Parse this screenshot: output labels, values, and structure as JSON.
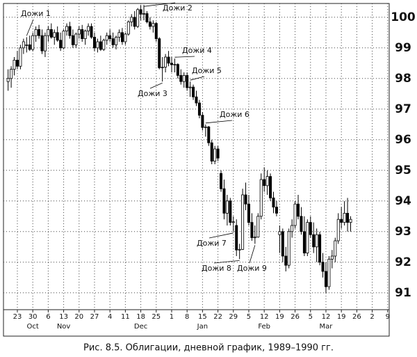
{
  "chart_data": {
    "type": "candlestick",
    "title": "Рис. 8.5. Облигации, дневной график, 1989–1990 гг.",
    "ohlc": [
      [
        97.9,
        98.3,
        97.6,
        98.0
      ],
      [
        98.0,
        98.4,
        97.7,
        98.3
      ],
      [
        98.3,
        98.7,
        98.1,
        98.6
      ],
      [
        98.6,
        98.9,
        98.3,
        98.4
      ],
      [
        98.4,
        99.1,
        98.3,
        99.0
      ],
      [
        99.0,
        99.3,
        98.8,
        99.2
      ],
      [
        99.1,
        99.35,
        98.85,
        99.1
      ],
      [
        99.1,
        99.4,
        98.9,
        98.95
      ],
      [
        98.95,
        99.5,
        98.9,
        99.4
      ],
      [
        99.4,
        99.7,
        99.2,
        99.6
      ],
      [
        99.6,
        99.75,
        99.3,
        99.4
      ],
      [
        99.4,
        99.6,
        98.8,
        98.9
      ],
      [
        98.9,
        99.5,
        98.7,
        99.4
      ],
      [
        99.4,
        99.7,
        99.2,
        99.6
      ],
      [
        99.6,
        99.8,
        99.3,
        99.35
      ],
      [
        99.35,
        99.6,
        99.1,
        99.5
      ],
      [
        99.5,
        99.7,
        99.2,
        99.25
      ],
      [
        99.25,
        99.5,
        98.9,
        99.0
      ],
      [
        99.0,
        99.6,
        98.95,
        99.55
      ],
      [
        99.55,
        99.8,
        99.4,
        99.7
      ],
      [
        99.7,
        99.85,
        99.3,
        99.4
      ],
      [
        99.4,
        99.6,
        99.0,
        99.1
      ],
      [
        99.1,
        99.5,
        99.0,
        99.45
      ],
      [
        99.45,
        99.7,
        99.3,
        99.6
      ],
      [
        99.6,
        99.75,
        99.2,
        99.3
      ],
      [
        99.3,
        99.6,
        99.1,
        99.55
      ],
      [
        99.55,
        99.8,
        99.4,
        99.7
      ],
      [
        99.7,
        99.8,
        99.3,
        99.35
      ],
      [
        99.35,
        99.5,
        98.9,
        99.0
      ],
      [
        99.0,
        99.3,
        98.85,
        99.2
      ],
      [
        99.2,
        99.4,
        98.9,
        98.95
      ],
      [
        98.95,
        99.3,
        98.9,
        99.25
      ],
      [
        99.25,
        99.5,
        99.1,
        99.4
      ],
      [
        99.4,
        99.6,
        99.2,
        99.3
      ],
      [
        99.3,
        99.5,
        99.0,
        99.1
      ],
      [
        99.1,
        99.4,
        98.95,
        99.35
      ],
      [
        99.35,
        99.6,
        99.2,
        99.5
      ],
      [
        99.5,
        99.65,
        99.1,
        99.2
      ],
      [
        99.2,
        99.5,
        99.1,
        99.45
      ],
      [
        99.45,
        99.9,
        99.4,
        99.85
      ],
      [
        99.85,
        100.1,
        99.7,
        100.0
      ],
      [
        100.0,
        100.2,
        99.6,
        99.7
      ],
      [
        99.7,
        100.3,
        99.65,
        100.25
      ],
      [
        100.25,
        100.4,
        99.9,
        100.1
      ],
      [
        100.1,
        100.4,
        99.9,
        100.12
      ],
      [
        100.12,
        100.2,
        99.8,
        99.85
      ],
      [
        99.85,
        100.0,
        99.6,
        99.7
      ],
      [
        99.7,
        99.9,
        99.5,
        99.8
      ],
      [
        99.8,
        99.85,
        99.2,
        99.3
      ],
      [
        99.3,
        99.35,
        98.3,
        98.35
      ],
      [
        98.35,
        98.7,
        97.9,
        98.37
      ],
      [
        98.37,
        98.8,
        98.2,
        98.7
      ],
      [
        98.7,
        98.9,
        98.4,
        98.5
      ],
      [
        98.5,
        98.7,
        98.2,
        98.45
      ],
      [
        98.45,
        98.65,
        98.2,
        98.46
      ],
      [
        98.46,
        98.5,
        98.0,
        98.1
      ],
      [
        98.1,
        98.3,
        97.8,
        97.9
      ],
      [
        97.9,
        98.2,
        97.7,
        98.1
      ],
      [
        98.1,
        98.2,
        97.6,
        97.7
      ],
      [
        97.7,
        97.9,
        97.4,
        97.72
      ],
      [
        97.72,
        97.8,
        97.3,
        97.4
      ],
      [
        97.4,
        97.6,
        97.1,
        97.2
      ],
      [
        97.2,
        97.3,
        96.7,
        96.8
      ],
      [
        96.8,
        96.9,
        96.3,
        96.4
      ],
      [
        96.4,
        96.5,
        96.1,
        96.42
      ],
      [
        96.42,
        96.45,
        95.8,
        95.9
      ],
      [
        95.9,
        96.0,
        95.2,
        95.3
      ],
      [
        95.3,
        95.8,
        95.2,
        95.7
      ],
      [
        95.7,
        95.8,
        95.3,
        95.4
      ],
      [
        94.9,
        95.0,
        94.3,
        94.4
      ],
      [
        94.4,
        94.7,
        93.4,
        93.6
      ],
      [
        93.6,
        94.2,
        93.2,
        94.0
      ],
      [
        94.0,
        94.1,
        93.2,
        93.3
      ],
      [
        93.3,
        93.5,
        93.0,
        93.32
      ],
      [
        93.2,
        93.4,
        92.2,
        92.4
      ],
      [
        92.4,
        92.6,
        92.1,
        92.42
      ],
      [
        92.42,
        94.4,
        92.4,
        94.2
      ],
      [
        94.2,
        94.6,
        93.7,
        93.9
      ],
      [
        93.9,
        94.2,
        93.2,
        93.3
      ],
      [
        93.3,
        93.6,
        92.7,
        92.8
      ],
      [
        92.8,
        93.2,
        92.6,
        92.82
      ],
      [
        92.82,
        93.6,
        92.8,
        93.5
      ],
      [
        93.5,
        94.9,
        93.4,
        94.7
      ],
      [
        94.7,
        95.1,
        94.3,
        94.5
      ],
      [
        94.5,
        95.0,
        94.2,
        94.8
      ],
      [
        94.8,
        94.9,
        94.0,
        94.1
      ],
      [
        94.1,
        94.3,
        93.6,
        93.8
      ],
      [
        93.8,
        94.0,
        93.5,
        93.6
      ],
      [
        92.9,
        93.2,
        92.3,
        93.0
      ],
      [
        93.0,
        93.1,
        92.0,
        92.2
      ],
      [
        92.2,
        92.5,
        91.7,
        91.9
      ],
      [
        91.9,
        93.1,
        91.8,
        93.0
      ],
      [
        93.0,
        93.4,
        92.8,
        93.2
      ],
      [
        93.2,
        94.0,
        93.1,
        93.9
      ],
      [
        93.9,
        94.2,
        93.4,
        93.5
      ],
      [
        93.5,
        93.8,
        92.9,
        93.0
      ],
      [
        93.0,
        93.5,
        92.2,
        92.3
      ],
      [
        92.3,
        93.4,
        92.2,
        93.3
      ],
      [
        93.3,
        93.5,
        92.8,
        92.9
      ],
      [
        92.9,
        93.3,
        92.3,
        92.5
      ],
      [
        92.5,
        93.1,
        92.0,
        92.9
      ],
      [
        92.9,
        93.0,
        91.9,
        92.0
      ],
      [
        92.0,
        92.3,
        91.5,
        91.7
      ],
      [
        91.7,
        92.0,
        91.0,
        91.2
      ],
      [
        91.2,
        92.2,
        91.1,
        92.1
      ],
      [
        92.1,
        92.4,
        91.8,
        92.2
      ],
      [
        92.2,
        92.8,
        92.0,
        92.7
      ],
      [
        92.7,
        93.6,
        92.6,
        93.4
      ],
      [
        93.4,
        93.8,
        93.1,
        93.3
      ],
      [
        93.3,
        94.0,
        93.2,
        93.6
      ],
      [
        93.6,
        94.1,
        93.0,
        93.3
      ],
      [
        93.3,
        93.5,
        93.0,
        93.4
      ]
    ],
    "annotations": [
      "Дожи 1",
      "Дожи 2",
      "Дожи 3",
      "Дожи 4",
      "Дожи 5",
      "Дожи 6",
      "Дожи 7",
      "Дожи 8",
      "Дожи 9"
    ],
    "xlim": [
      -1.5,
      123.5
    ],
    "xticks": [
      {
        "value": 3,
        "label": "23"
      },
      {
        "value": 8,
        "label": "30"
      },
      {
        "value": 13,
        "label": "6"
      },
      {
        "value": 18,
        "label": "13"
      },
      {
        "value": 23,
        "label": "20"
      },
      {
        "value": 28,
        "label": "27"
      },
      {
        "value": 33,
        "label": "4"
      },
      {
        "value": 38,
        "label": "11"
      },
      {
        "value": 43,
        "label": "18"
      },
      {
        "value": 48,
        "label": "25"
      },
      {
        "value": 53,
        "label": "1"
      },
      {
        "value": 58,
        "label": "8"
      },
      {
        "value": 63,
        "label": "15"
      },
      {
        "value": 68,
        "label": "22"
      },
      {
        "value": 73,
        "label": "29"
      },
      {
        "value": 78,
        "label": "5"
      },
      {
        "value": 83,
        "label": "12"
      },
      {
        "value": 88,
        "label": "19"
      },
      {
        "value": 93,
        "label": "26"
      },
      {
        "value": 98,
        "label": "5"
      },
      {
        "value": 103,
        "label": "12"
      },
      {
        "value": 108,
        "label": "19"
      },
      {
        "value": 113,
        "label": "26"
      },
      {
        "value": 118,
        "label": "2"
      },
      {
        "value": 123,
        "label": "9"
      }
    ],
    "month_labels": [
      {
        "value": 8,
        "label": "Oct"
      },
      {
        "value": 18,
        "label": "Nov"
      },
      {
        "value": 43,
        "label": "Dec"
      },
      {
        "value": 63,
        "label": "Jan"
      },
      {
        "value": 83,
        "label": "Feb"
      },
      {
        "value": 103,
        "label": "Mar"
      }
    ],
    "ylim": [
      90.45,
      100.45
    ],
    "yticks": [
      91,
      92,
      93,
      94,
      95,
      96,
      97,
      98,
      99,
      100
    ],
    "grid": true
  }
}
